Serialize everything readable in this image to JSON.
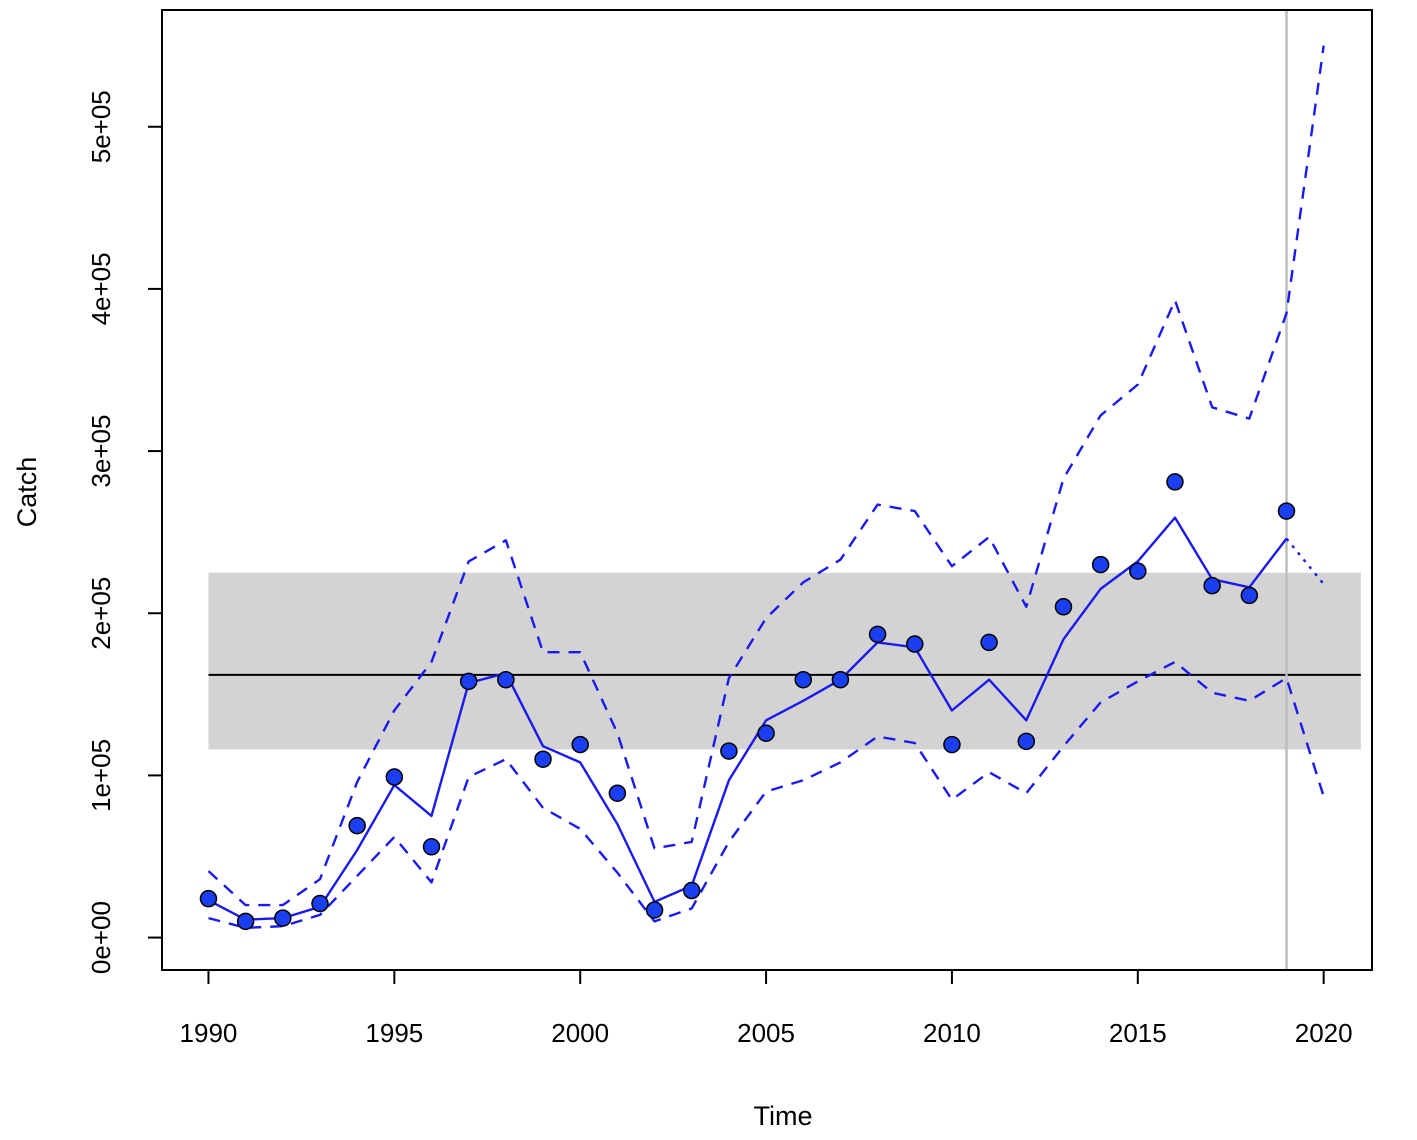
{
  "chart_data": {
    "type": "line",
    "title": "",
    "xlabel": "Time",
    "ylabel": "Catch",
    "xlim": [
      1988.75,
      2021.3
    ],
    "ylim": [
      -20000,
      572000
    ],
    "x_ticks": [
      1990,
      1995,
      2000,
      2005,
      2010,
      2015,
      2020
    ],
    "x_tick_labels": [
      "1990",
      "1995",
      "2000",
      "2005",
      "2010",
      "2015",
      "2020"
    ],
    "y_ticks": [
      0,
      100000,
      200000,
      300000,
      400000,
      500000
    ],
    "y_tick_labels": [
      "0e+00",
      "1e+05",
      "2e+05",
      "3e+05",
      "4e+05",
      "5e+05"
    ],
    "grid": false,
    "legend": "none",
    "colors": {
      "series": "#1a1aee",
      "points": "#1a3ff0",
      "point_outline": "#000000",
      "band": "#d3d3d3",
      "reference_line": "#000000",
      "vertical_marker": "#bebebe"
    },
    "reference_band": {
      "ymin": 116000,
      "ymax": 225000
    },
    "reference_line": {
      "y": 162000
    },
    "vertical_marker": {
      "x": 2019
    },
    "observed": {
      "x": [
        1990,
        1991,
        1992,
        1993,
        1994,
        1995,
        1996,
        1997,
        1998,
        1999,
        2000,
        2001,
        2002,
        2003,
        2004,
        2005,
        2006,
        2007,
        2008,
        2009,
        2010,
        2011,
        2012,
        2013,
        2014,
        2015,
        2016,
        2017,
        2018,
        2019
      ],
      "y": [
        24000,
        10000,
        12000,
        21000,
        69000,
        99000,
        56000,
        158000,
        159000,
        110000,
        119000,
        89000,
        17000,
        29000,
        115000,
        126000,
        159000,
        159000,
        187000,
        181000,
        119000,
        182000,
        121000,
        204000,
        230000,
        226000,
        281000,
        217000,
        211000,
        263000
      ]
    },
    "series": [
      {
        "role": "fitted",
        "style": "solid",
        "x": [
          1990,
          1991,
          1992,
          1993,
          1994,
          1995,
          1996,
          1997,
          1998,
          1999,
          2000,
          2001,
          2002,
          2003,
          2004,
          2005,
          2006,
          2007,
          2008,
          2009,
          2010,
          2011,
          2012,
          2013,
          2014,
          2015,
          2016,
          2017,
          2018,
          2019
        ],
        "y": [
          23000,
          11000,
          12000,
          19000,
          54000,
          94000,
          75000,
          157000,
          163000,
          118000,
          108000,
          70000,
          22000,
          32000,
          97000,
          134000,
          146000,
          159000,
          182000,
          179000,
          140000,
          159000,
          134000,
          184000,
          215000,
          232000,
          259000,
          221000,
          216000,
          246000
        ]
      },
      {
        "role": "forecast",
        "style": "dotted",
        "x": [
          2019,
          2020
        ],
        "y": [
          246000,
          218000
        ]
      },
      {
        "role": "upper-bound",
        "style": "dashed",
        "x": [
          1990,
          1991,
          1992,
          1993,
          1994,
          1995,
          1996,
          1997,
          1998,
          1999,
          2000,
          2001,
          2002,
          2003,
          2004,
          2005,
          2006,
          2007,
          2008,
          2009,
          2010,
          2011,
          2012,
          2013,
          2014,
          2015,
          2016,
          2017,
          2018,
          2019,
          2020
        ],
        "y": [
          41000,
          20000,
          20000,
          36000,
          96000,
          140000,
          170000,
          232000,
          245000,
          176000,
          176000,
          126000,
          55000,
          59000,
          160000,
          197000,
          219000,
          233000,
          267000,
          263000,
          229000,
          247000,
          204000,
          283000,
          322000,
          341000,
          393000,
          327000,
          320000,
          385000,
          550000
        ]
      },
      {
        "role": "lower-bound",
        "style": "dashed",
        "x": [
          1990,
          1991,
          1992,
          1993,
          1994,
          1995,
          1996,
          1997,
          1998,
          1999,
          2000,
          2001,
          2002,
          2003,
          2004,
          2005,
          2006,
          2007,
          2008,
          2009,
          2010,
          2011,
          2012,
          2013,
          2014,
          2015,
          2016,
          2017,
          2018,
          2019,
          2020
        ],
        "y": [
          12000,
          6000,
          7000,
          14000,
          38000,
          62000,
          34000,
          99000,
          110000,
          80000,
          67000,
          40000,
          10000,
          18000,
          59000,
          90000,
          97000,
          108000,
          124000,
          120000,
          85000,
          102000,
          89000,
          118000,
          145000,
          158000,
          170000,
          151000,
          146000,
          160000,
          87000
        ]
      }
    ]
  }
}
